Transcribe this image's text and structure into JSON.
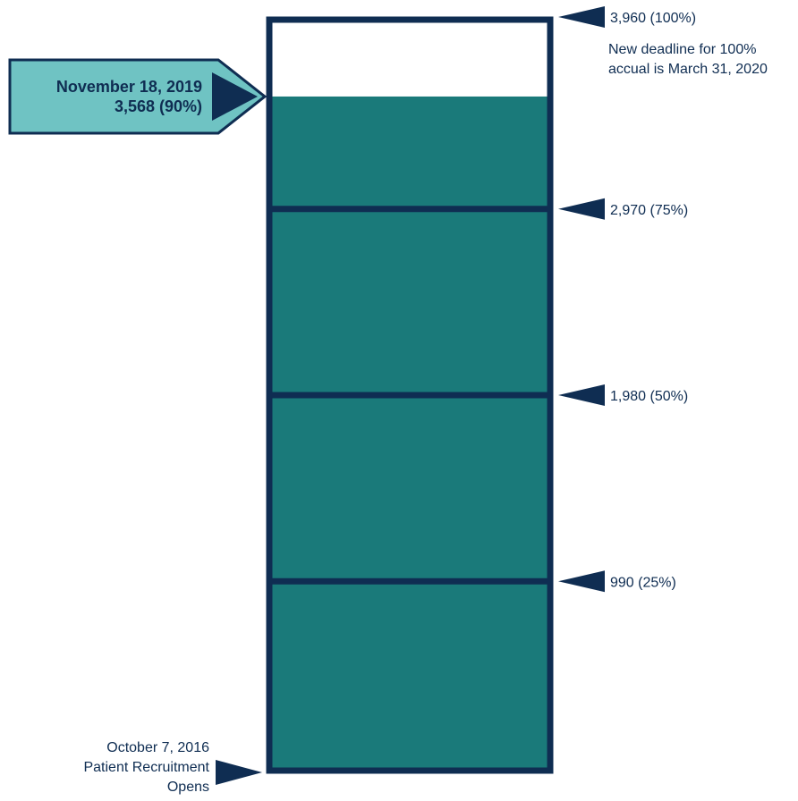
{
  "chart_data": {
    "type": "bar",
    "ylim": [
      0,
      3960
    ],
    "current": {
      "date": "November 18, 2019",
      "label": "3,568 (90%)",
      "value": 3568,
      "percent": 90
    },
    "milestones": [
      {
        "value": 3960,
        "label": "3,960 (100%)"
      },
      {
        "value": 2970,
        "label": "2,970 (75%)"
      },
      {
        "value": 1980,
        "label": "1,980 (50%)"
      },
      {
        "value": 990,
        "label": "990 (25%)"
      }
    ],
    "note": [
      "New deadline for 100%",
      "accual is March 31, 2020"
    ],
    "start": [
      "October 7, 2016",
      "Patient Recruitment",
      "Opens"
    ],
    "colors": {
      "frame": "#0f2d52",
      "fill": "#1a7a7a",
      "callout_fill": "#6fc3c3",
      "text": "#0f2d52"
    }
  }
}
